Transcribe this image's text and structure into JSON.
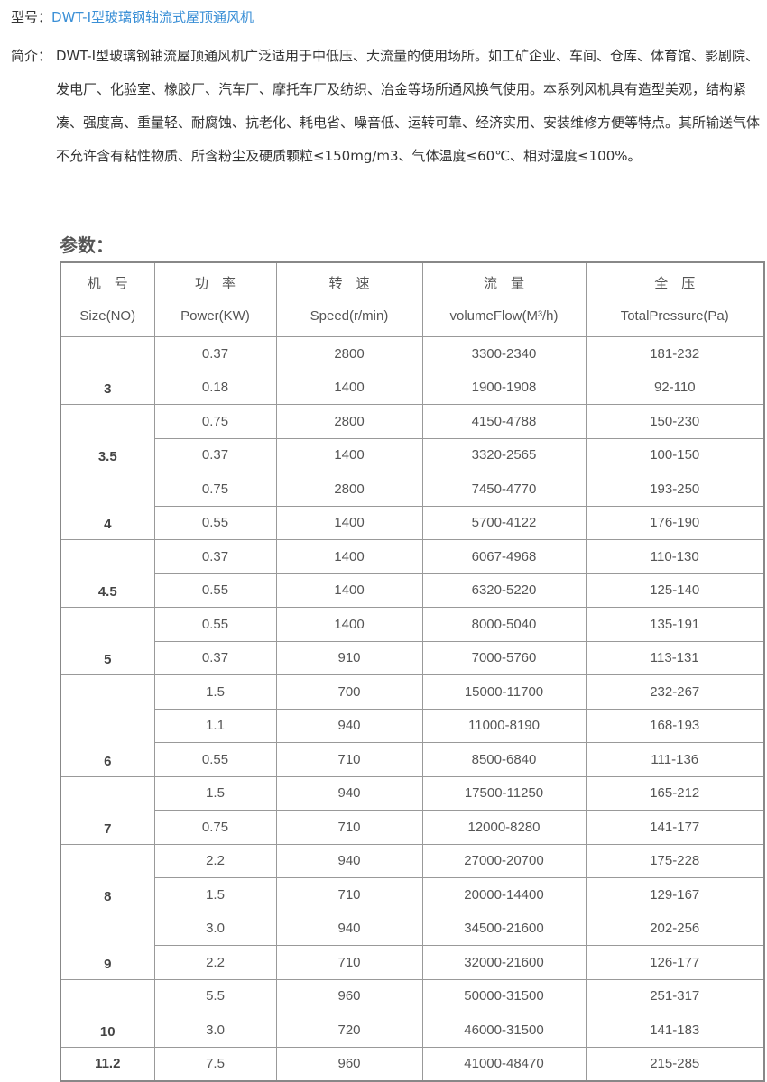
{
  "model": {
    "label": "型号：",
    "value": "DWT-I型玻璃钢轴流式屋顶通风机"
  },
  "intro": {
    "label": "简介：",
    "text": "DWT-I型玻璃钢轴流屋顶通风机广泛适用于中低压、大流量的使用场所。如工矿企业、车间、仓库、体育馆、影剧院、发电厂、化验室、橡胶厂、汽车厂、摩托车厂及纺织、冶金等场所通风换气使用。本系列风机具有造型美观，结构紧凑、强度高、重量轻、耐腐蚀、抗老化、耗电省、噪音低、运转可靠、经济实用、安装维修方便等特点。其所输送气体不允许含有粘性物质、所含粉尘及硬质颗粒≤150mg/m3、气体温度≤60℃、相对湿度≤100%。"
  },
  "params_title": "参数：",
  "table": {
    "headers": [
      {
        "cn": "机　号",
        "en": "Size(NO)"
      },
      {
        "cn": "功　率",
        "en": "Power(KW)"
      },
      {
        "cn": "转　速",
        "en": "Speed(r/min)"
      },
      {
        "cn": "流　量",
        "en": "volumeFlow(M³/h)"
      },
      {
        "cn": "全　压",
        "en": "TotalPressure(Pa)"
      }
    ],
    "groups": [
      {
        "size": "3",
        "rows": [
          [
            "0.37",
            "2800",
            "3300-2340",
            "181-232"
          ],
          [
            "0.18",
            "1400",
            "1900-1908",
            "92-110"
          ]
        ]
      },
      {
        "size": "3.5",
        "rows": [
          [
            "0.75",
            "2800",
            "4150-4788",
            "150-230"
          ],
          [
            "0.37",
            "1400",
            "3320-2565",
            "100-150"
          ]
        ]
      },
      {
        "size": "4",
        "rows": [
          [
            "0.75",
            "2800",
            "7450-4770",
            "193-250"
          ],
          [
            "0.55",
            "1400",
            "5700-4122",
            "176-190"
          ]
        ]
      },
      {
        "size": "4.5",
        "rows": [
          [
            "0.37",
            "1400",
            "6067-4968",
            "110-130"
          ],
          [
            "0.55",
            "1400",
            "6320-5220",
            "125-140"
          ]
        ]
      },
      {
        "size": "5",
        "rows": [
          [
            "0.55",
            "1400",
            "8000-5040",
            "135-191"
          ],
          [
            "0.37",
            "910",
            "7000-5760",
            "113-131"
          ]
        ]
      },
      {
        "size": "6",
        "rows": [
          [
            "1.5",
            "700",
            "15000-11700",
            "232-267"
          ],
          [
            "1.1",
            "940",
            "11000-8190",
            "168-193"
          ],
          [
            "0.55",
            "710",
            "8500-6840",
            "111-136"
          ]
        ]
      },
      {
        "size": "7",
        "rows": [
          [
            "1.5",
            "940",
            "17500-11250",
            "165-212"
          ],
          [
            "0.75",
            "710",
            "12000-8280",
            "141-177"
          ]
        ]
      },
      {
        "size": "8",
        "rows": [
          [
            "2.2",
            "940",
            "27000-20700",
            "175-228"
          ],
          [
            "1.5",
            "710",
            "20000-14400",
            "129-167"
          ]
        ]
      },
      {
        "size": "9",
        "rows": [
          [
            "3.0",
            "940",
            "34500-21600",
            "202-256"
          ],
          [
            "2.2",
            "710",
            "32000-21600",
            "126-177"
          ]
        ]
      },
      {
        "size": "10",
        "rows": [
          [
            "5.5",
            "960",
            "50000-31500",
            "251-317"
          ],
          [
            "3.0",
            "720",
            "46000-31500",
            "141-183"
          ]
        ]
      },
      {
        "size": "11.2",
        "rows": [
          [
            "7.5",
            "960",
            "41000-48470",
            "215-285"
          ]
        ]
      }
    ]
  }
}
